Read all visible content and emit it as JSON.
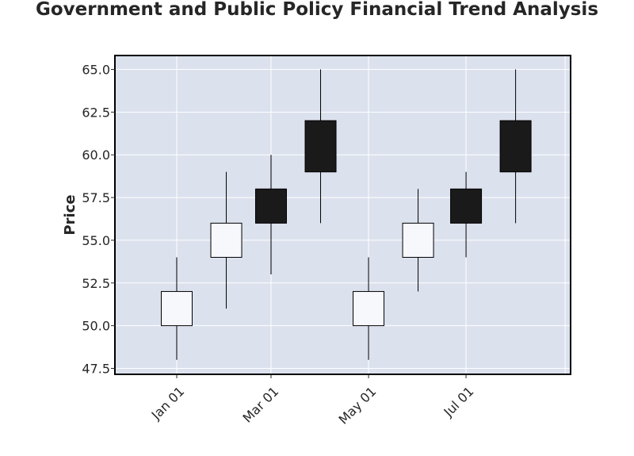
{
  "chart_data": {
    "type": "candlestick",
    "title": "Government and Public Policy Financial Trend Analysis",
    "xlabel": "",
    "ylabel": "Price",
    "ylim": [
      47.5,
      65.0
    ],
    "yticks": [
      "47.5",
      "50.0",
      "52.5",
      "55.0",
      "57.5",
      "60.0",
      "62.5",
      "65.0"
    ],
    "xticks": [
      "Jan 01",
      "Mar 01",
      "May 01",
      "Jul 01"
    ],
    "grid": true,
    "colors": {
      "plot_bg": "#dce1ee",
      "grid": "#ffffff",
      "up_fill": "#f6f8fc",
      "down_fill": "#1a1a1b",
      "edge": "#000000"
    },
    "candles": [
      {
        "date": "2023-01-01",
        "open": 50,
        "high": 54,
        "low": 48,
        "close": 52
      },
      {
        "date": "2023-02-01",
        "open": 54,
        "high": 59,
        "low": 51,
        "close": 56
      },
      {
        "date": "2023-03-01",
        "open": 58,
        "high": 60,
        "low": 53,
        "close": 56
      },
      {
        "date": "2023-04-01",
        "open": 62,
        "high": 65,
        "low": 56,
        "close": 59
      },
      {
        "date": "2023-05-01",
        "open": 50,
        "high": 54,
        "low": 48,
        "close": 52
      },
      {
        "date": "2023-06-01",
        "open": 54,
        "high": 58,
        "low": 52,
        "close": 56
      },
      {
        "date": "2023-07-01",
        "open": 58,
        "high": 59,
        "low": 54,
        "close": 56
      },
      {
        "date": "2023-08-01",
        "open": 62,
        "high": 65,
        "low": 56,
        "close": 59
      }
    ]
  }
}
